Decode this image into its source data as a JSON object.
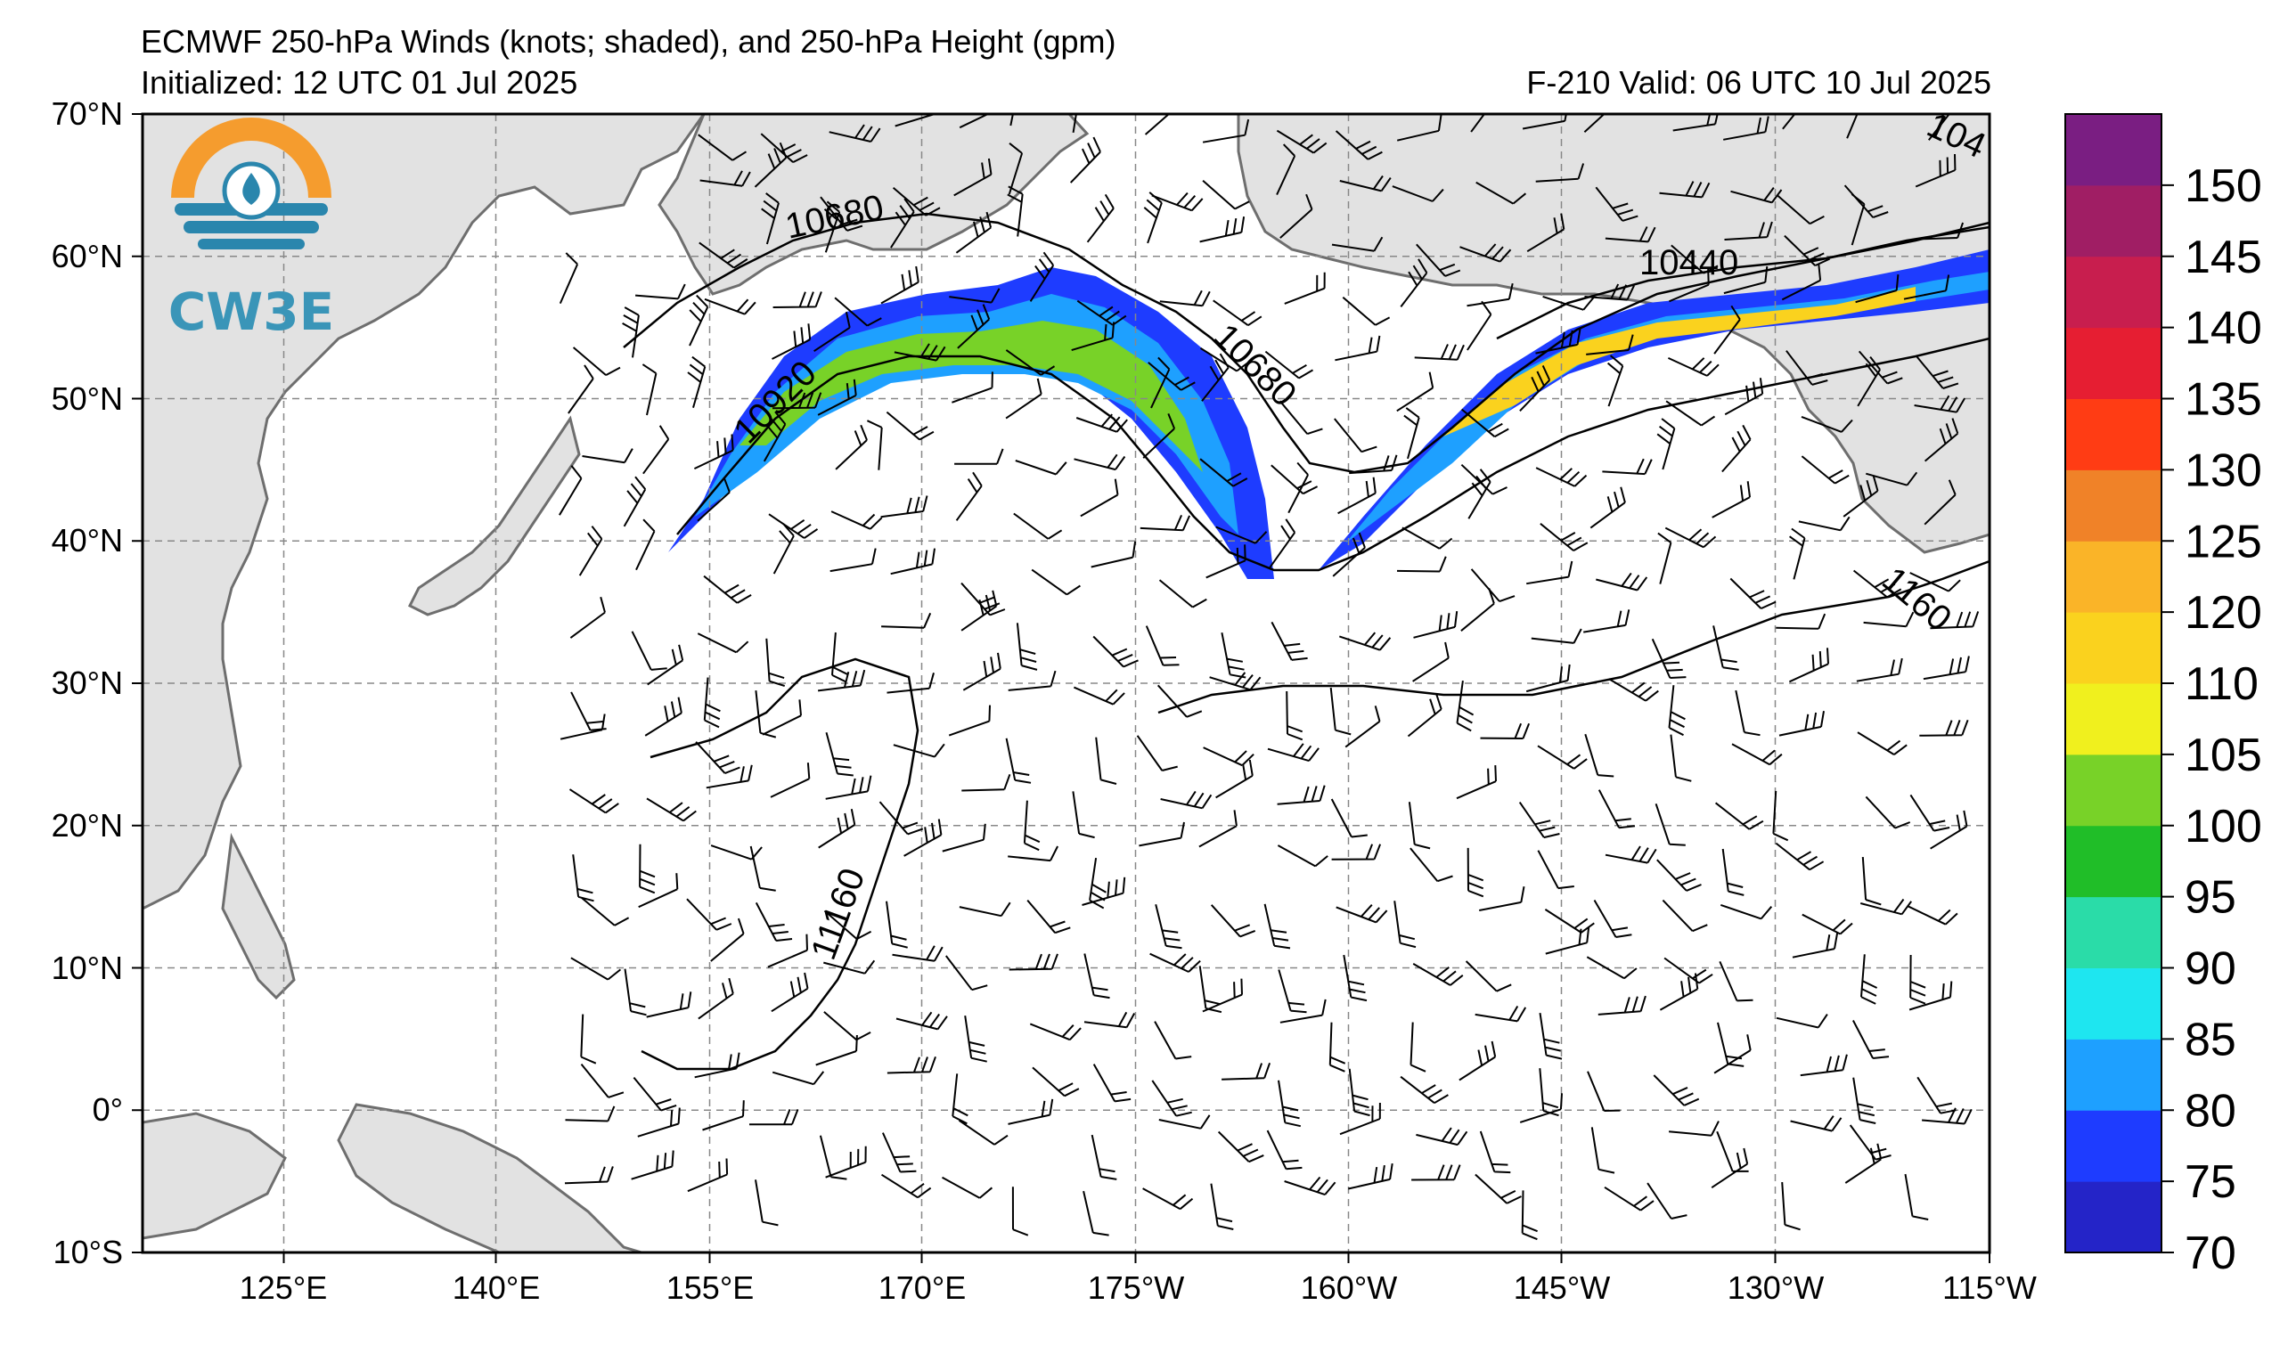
{
  "title": {
    "main": "ECMWF 250-hPa Winds (knots; shaded), and 250-hPa Height (gpm)",
    "initialized": "Initialized: 12 UTC 01 Jul 2025",
    "valid": "F-210  Valid: 06 UTC 10 Jul 2025"
  },
  "logo": {
    "text": "CW3E"
  },
  "axes": {
    "lat_labels": [
      "70°N",
      "60°N",
      "50°N",
      "40°N",
      "30°N",
      "20°N",
      "10°N",
      "0°",
      "10°S"
    ],
    "lon_labels": [
      "125°E",
      "140°E",
      "155°E",
      "170°E",
      "175°W",
      "160°W",
      "145°W",
      "130°W",
      "115°W"
    ]
  },
  "contour_labels": [
    "10680",
    "10920",
    "10680",
    "10440",
    "1160",
    "11160",
    "104"
  ],
  "colorbar": {
    "labels": [
      "70",
      "75",
      "80",
      "85",
      "90",
      "95",
      "100",
      "105",
      "110",
      "120",
      "125",
      "130",
      "135",
      "140",
      "145",
      "150"
    ],
    "colors": [
      "#2424c8",
      "#1e3cff",
      "#1ea0ff",
      "#1ee6f0",
      "#2adca8",
      "#20be28",
      "#78d228",
      "#f0f01e",
      "#fad21e",
      "#fab428",
      "#f08228",
      "#ff3c14",
      "#e61e32",
      "#c81e4e",
      "#a01e64",
      "#7a1e82"
    ]
  },
  "colors": {
    "land": "#e2e2e2",
    "coast": "#6e6e6e",
    "grid": "#888888"
  }
}
